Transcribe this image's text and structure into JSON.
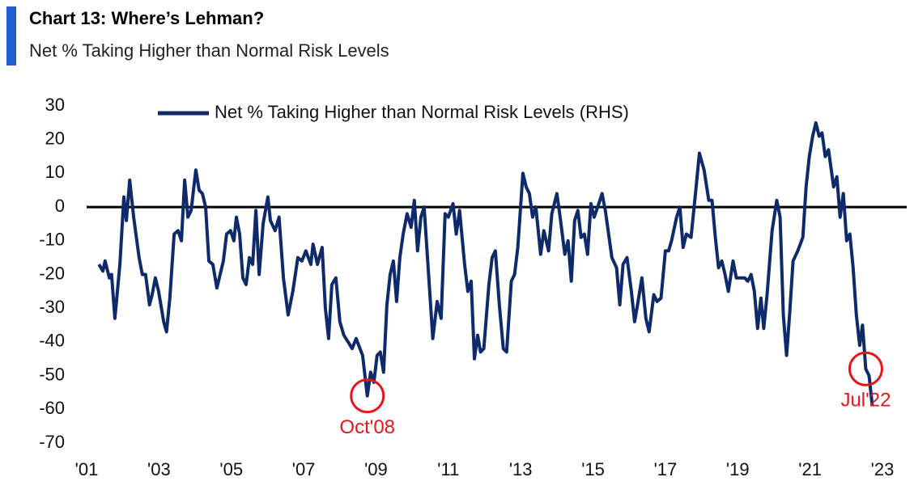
{
  "chart_data": {
    "type": "line",
    "title": "Chart 13: Where’s Lehman?",
    "subtitle": "Net % Taking Higher than Normal Risk Levels",
    "x": [
      2001.34,
      2001.45,
      2001.51,
      2001.63,
      2001.69,
      2001.78,
      2001.92,
      2002.03,
      2002.1,
      2002.19,
      2002.3,
      2002.45,
      2002.54,
      2002.63,
      2002.74,
      2002.81,
      2002.9,
      2002.99,
      2003.13,
      2003.21,
      2003.3,
      2003.42,
      2003.53,
      2003.62,
      2003.71,
      2003.8,
      2003.89,
      2004.02,
      2004.11,
      2004.2,
      2004.29,
      2004.38,
      2004.49,
      2004.6,
      2004.69,
      2004.78,
      2004.87,
      2004.98,
      2005.07,
      2005.14,
      2005.23,
      2005.32,
      2005.41,
      2005.5,
      2005.59,
      2005.68,
      2005.77,
      2005.88,
      2006.01,
      2006.08,
      2006.21,
      2006.32,
      2006.44,
      2006.57,
      2006.7,
      2006.84,
      2006.95,
      2007.06,
      2007.2,
      2007.26,
      2007.38,
      2007.51,
      2007.6,
      2007.69,
      2007.78,
      2007.89,
      2008.0,
      2008.11,
      2008.23,
      2008.34,
      2008.45,
      2008.63,
      2008.76,
      2008.85,
      2008.94,
      2009.03,
      2009.12,
      2009.21,
      2009.3,
      2009.39,
      2009.48,
      2009.57,
      2009.66,
      2009.75,
      2009.86,
      2009.97,
      2010.06,
      2010.15,
      2010.24,
      2010.33,
      2010.46,
      2010.57,
      2010.69,
      2010.8,
      2010.91,
      2011.0,
      2011.13,
      2011.22,
      2011.31,
      2011.45,
      2011.54,
      2011.63,
      2011.72,
      2011.81,
      2011.89,
      2011.98,
      2012.12,
      2012.21,
      2012.3,
      2012.41,
      2012.52,
      2012.61,
      2012.74,
      2012.83,
      2012.92,
      2013.06,
      2013.15,
      2013.24,
      2013.33,
      2013.42,
      2013.55,
      2013.64,
      2013.77,
      2013.86,
      2014.0,
      2014.09,
      2014.22,
      2014.31,
      2014.4,
      2014.49,
      2014.58,
      2014.67,
      2014.76,
      2014.85,
      2014.94,
      2015.03,
      2015.16,
      2015.25,
      2015.34,
      2015.43,
      2015.52,
      2015.65,
      2015.74,
      2015.83,
      2015.94,
      2016.06,
      2016.15,
      2016.23,
      2016.35,
      2016.46,
      2016.55,
      2016.68,
      2016.77,
      2016.88,
      2017.0,
      2017.09,
      2017.17,
      2017.31,
      2017.4,
      2017.49,
      2017.58,
      2017.71,
      2017.85,
      2017.94,
      2018.07,
      2018.2,
      2018.29,
      2018.38,
      2018.47,
      2018.56,
      2018.65,
      2018.74,
      2018.87,
      2018.96,
      2019.1,
      2019.19,
      2019.28,
      2019.37,
      2019.46,
      2019.55,
      2019.64,
      2019.72,
      2019.81,
      2019.95,
      2020.08,
      2020.17,
      2020.26,
      2020.35,
      2020.44,
      2020.53,
      2020.66,
      2020.8,
      2020.89,
      2020.98,
      2021.07,
      2021.16,
      2021.25,
      2021.33,
      2021.42,
      2021.51,
      2021.65,
      2021.74,
      2021.83,
      2021.92,
      2022.01,
      2022.1,
      2022.19,
      2022.28,
      2022.37,
      2022.45,
      2022.54,
      2022.63,
      2022.72
    ],
    "series": [
      {
        "name": "Net % Taking Higher than Normal Risk Levels (RHS)",
        "color": "#0f2a6b",
        "values": [
          -17,
          -19,
          -16,
          -21,
          -20,
          -33,
          -17,
          3,
          -4,
          8,
          -3,
          -15,
          -20,
          -20,
          -29,
          -26,
          -21,
          -25,
          -34,
          -37,
          -27,
          -8,
          -7,
          -10,
          8,
          -3,
          -1,
          11,
          5,
          4,
          0,
          -16,
          -17,
          -24,
          -20,
          -16,
          -8,
          -7,
          -10,
          -3,
          -8,
          -21,
          -23,
          -15,
          -17,
          -1,
          -20,
          -5,
          3,
          -4,
          -7,
          -3,
          -21,
          -32,
          -25,
          -15,
          -16,
          -13,
          -17,
          -11,
          -17,
          -12,
          -30,
          -39,
          -23,
          -21,
          -34,
          -38,
          -40,
          -42,
          -39,
          -44,
          -56,
          -49,
          -52,
          -44,
          -43,
          -49,
          -29,
          -20,
          -16,
          -28,
          -15,
          -8,
          -2,
          -6,
          2,
          -13,
          -3,
          0,
          -21,
          -39,
          -28,
          -33,
          -2,
          -3,
          1,
          -8,
          -1,
          -17,
          -25,
          -22,
          -45,
          -38,
          -43,
          -42,
          -23,
          -15,
          -13,
          -29,
          -42,
          -43,
          -22,
          -20,
          -12,
          10,
          6,
          4,
          -3,
          0,
          -14,
          -7,
          -13,
          -2,
          4,
          -3,
          -14,
          -10,
          -22,
          -4,
          -1,
          -9,
          -8,
          -14,
          1,
          -3,
          1,
          4,
          -1,
          -8,
          -15,
          -18,
          -29,
          -17,
          -15,
          -25,
          -34,
          -29,
          -21,
          -33,
          -37,
          -26,
          -28,
          -27,
          -13,
          -13,
          -10,
          -3,
          0,
          -12,
          -8,
          -9,
          6,
          16,
          11,
          2,
          2,
          -9,
          -18,
          -16,
          -20,
          -25,
          -16,
          -21,
          -21,
          -21,
          -22,
          -20,
          -25,
          -36,
          -27,
          -36,
          -26,
          -7,
          2,
          -3,
          -32,
          -44,
          -31,
          -16,
          -13,
          -9,
          6,
          15,
          21,
          25,
          21,
          22,
          15,
          17,
          6,
          9,
          -3,
          4,
          -10,
          -8,
          -18,
          -32,
          -41,
          -35,
          -48,
          -50,
          -59
        ]
      }
    ],
    "xlim": [
      2001,
      2023
    ],
    "xticks": [
      {
        "value": 2001,
        "label": "'01"
      },
      {
        "value": 2003,
        "label": "'03"
      },
      {
        "value": 2005,
        "label": "'05"
      },
      {
        "value": 2007,
        "label": "'07"
      },
      {
        "value": 2009,
        "label": "'09"
      },
      {
        "value": 2011,
        "label": "'11"
      },
      {
        "value": 2013,
        "label": "'13"
      },
      {
        "value": 2015,
        "label": "'15"
      },
      {
        "value": 2017,
        "label": "'17"
      },
      {
        "value": 2019,
        "label": "'19"
      },
      {
        "value": 2021,
        "label": "'21"
      },
      {
        "value": 2023,
        "label": "'23"
      }
    ],
    "ylim": [
      -70,
      30
    ],
    "yticks": [
      -70,
      -60,
      -50,
      -40,
      -30,
      -20,
      -10,
      0,
      10,
      20,
      30
    ],
    "reference_line": 0,
    "grid": false,
    "annotations": [
      {
        "text": "Oct'08",
        "x": 2008.79,
        "color": "#e8141b"
      },
      {
        "text": "Jul'22",
        "x": 2022.54,
        "color": "#e8141b"
      }
    ]
  }
}
